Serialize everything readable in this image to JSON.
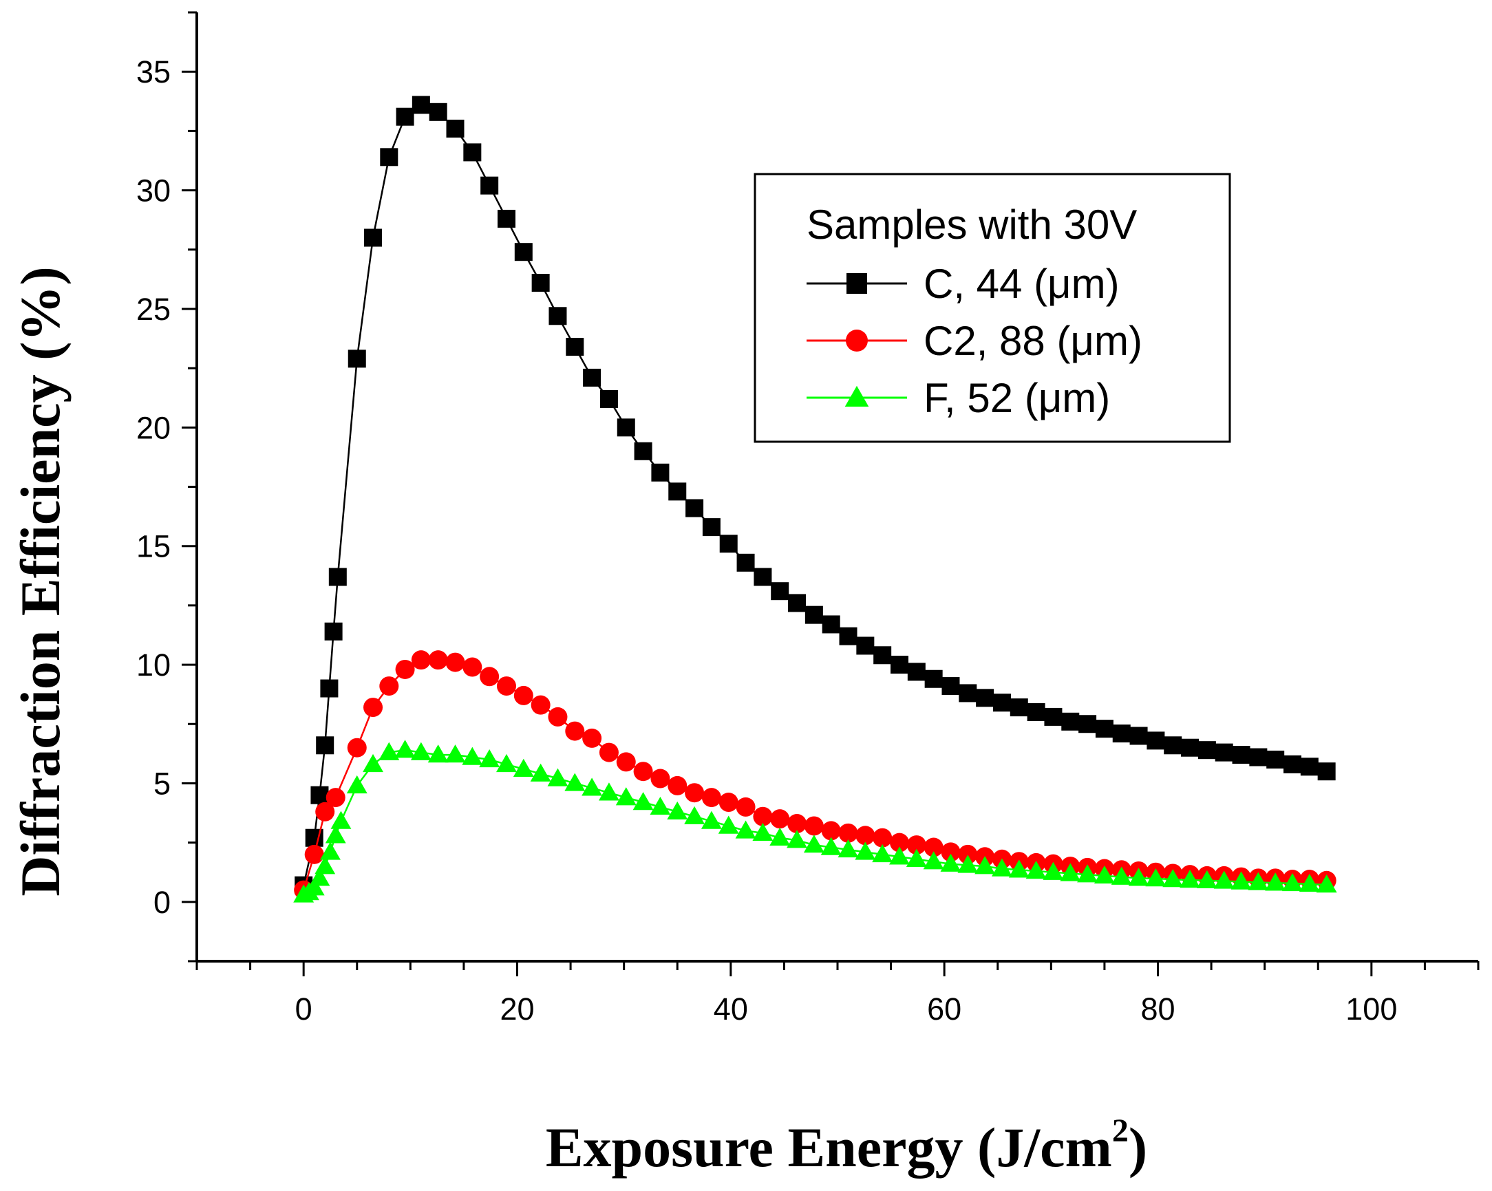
{
  "chart_data": {
    "type": "line",
    "title": "",
    "xlabel": "Exposure Energy (J/cm",
    "xlabel_sup": "2",
    "xlabel_close": ")",
    "ylabel": "Diffraction Efficiency (%)",
    "xlim": [
      -10,
      110
    ],
    "ylim": [
      -2.5,
      37.5
    ],
    "x_ticks": [
      0,
      20,
      40,
      60,
      80,
      100
    ],
    "x_tick_labels": [
      "0",
      "20",
      "40",
      "60",
      "80",
      "100"
    ],
    "y_ticks": [
      0,
      5,
      10,
      15,
      20,
      25,
      30,
      35
    ],
    "y_tick_labels": [
      "0",
      "5",
      "10",
      "15",
      "20",
      "25",
      "30",
      "35"
    ],
    "legend": {
      "title": "Samples with 30V",
      "position": "top-right"
    },
    "series": [
      {
        "name": "C, 44 (μm)",
        "color": "#000000",
        "marker": "square",
        "x": [
          0,
          1,
          1.5,
          2,
          2.4,
          2.8,
          3.2,
          5,
          6.5,
          8,
          9.5,
          11,
          12.6,
          14.2,
          15.8,
          17.4,
          19,
          20.6,
          22.2,
          23.8,
          25.4,
          27,
          28.6,
          30.2,
          31.8,
          33.4,
          35,
          36.6,
          38.2,
          39.8,
          41.4,
          43,
          44.6,
          46.2,
          47.8,
          49.4,
          51,
          52.6,
          54.2,
          55.8,
          57.4,
          59,
          60.6,
          62.2,
          63.8,
          65.4,
          67,
          68.6,
          70.2,
          71.8,
          73.4,
          75,
          76.6,
          78.2,
          79.8,
          81.4,
          83,
          84.6,
          86.2,
          87.8,
          89.4,
          91,
          92.6,
          94.2,
          95.8
        ],
        "y": [
          0.7,
          2.7,
          4.5,
          6.6,
          9.0,
          11.4,
          13.7,
          22.9,
          28.0,
          31.4,
          33.1,
          33.6,
          33.3,
          32.6,
          31.6,
          30.2,
          28.8,
          27.4,
          26.1,
          24.7,
          23.4,
          22.1,
          21.2,
          20.0,
          19.0,
          18.1,
          17.3,
          16.6,
          15.8,
          15.1,
          14.3,
          13.7,
          13.1,
          12.6,
          12.1,
          11.7,
          11.2,
          10.8,
          10.4,
          10.0,
          9.7,
          9.4,
          9.1,
          8.8,
          8.6,
          8.4,
          8.2,
          8.0,
          7.8,
          7.6,
          7.5,
          7.3,
          7.1,
          7.0,
          6.8,
          6.6,
          6.5,
          6.4,
          6.3,
          6.2,
          6.1,
          6.0,
          5.8,
          5.7,
          5.5
        ]
      },
      {
        "name": "C2, 88 (μm)",
        "color": "#ff0000",
        "marker": "circle",
        "x": [
          0,
          1,
          2,
          3,
          5,
          6.5,
          8,
          9.5,
          11,
          12.6,
          14.2,
          15.8,
          17.4,
          19,
          20.6,
          22.2,
          23.8,
          25.4,
          27,
          28.6,
          30.2,
          31.8,
          33.4,
          35,
          36.6,
          38.2,
          39.8,
          41.4,
          43,
          44.6,
          46.2,
          47.8,
          49.4,
          51,
          52.6,
          54.2,
          55.8,
          57.4,
          59,
          60.6,
          62.2,
          63.8,
          65.4,
          67,
          68.6,
          70.2,
          71.8,
          73.4,
          75,
          76.6,
          78.2,
          79.8,
          81.4,
          83,
          84.6,
          86.2,
          87.8,
          89.4,
          91,
          92.6,
          94.2,
          95.8
        ],
        "y": [
          0.5,
          2.0,
          3.8,
          4.4,
          6.5,
          8.2,
          9.1,
          9.8,
          10.2,
          10.2,
          10.1,
          9.9,
          9.5,
          9.1,
          8.7,
          8.3,
          7.8,
          7.2,
          6.9,
          6.3,
          5.9,
          5.5,
          5.2,
          4.9,
          4.6,
          4.4,
          4.2,
          4.0,
          3.6,
          3.5,
          3.3,
          3.2,
          3.0,
          2.9,
          2.8,
          2.7,
          2.5,
          2.4,
          2.3,
          2.1,
          2.0,
          1.9,
          1.8,
          1.7,
          1.65,
          1.6,
          1.5,
          1.45,
          1.4,
          1.35,
          1.3,
          1.25,
          1.2,
          1.15,
          1.1,
          1.1,
          1.05,
          1.0,
          1.0,
          0.95,
          0.95,
          0.9
        ]
      },
      {
        "name": "F, 52 (μm)",
        "color": "#00ff00",
        "marker": "triangle",
        "x": [
          0,
          0.5,
          1,
          1.5,
          2,
          2.5,
          3,
          3.5,
          5,
          6.5,
          8,
          9.5,
          11,
          12.6,
          14.2,
          15.8,
          17.4,
          19,
          20.6,
          22.2,
          23.8,
          25.4,
          27,
          28.6,
          30.2,
          31.8,
          33.4,
          35,
          36.6,
          38.2,
          39.8,
          41.4,
          43,
          44.6,
          46.2,
          47.8,
          49.4,
          51,
          52.6,
          54.2,
          55.8,
          57.4,
          59,
          60.6,
          62.2,
          63.8,
          65.4,
          67,
          68.6,
          70.2,
          71.8,
          73.4,
          75,
          76.6,
          78.2,
          79.8,
          81.4,
          83,
          84.6,
          86.2,
          87.8,
          89.4,
          91,
          92.6,
          94.2,
          95.8
        ],
        "y": [
          0.3,
          0.4,
          0.6,
          1.0,
          1.5,
          2.1,
          2.8,
          3.4,
          4.9,
          5.8,
          6.3,
          6.4,
          6.3,
          6.2,
          6.2,
          6.1,
          6.0,
          5.8,
          5.6,
          5.4,
          5.2,
          5.0,
          4.8,
          4.6,
          4.4,
          4.2,
          4.0,
          3.8,
          3.6,
          3.4,
          3.2,
          3.0,
          2.9,
          2.7,
          2.6,
          2.4,
          2.3,
          2.2,
          2.1,
          2.0,
          1.9,
          1.8,
          1.7,
          1.6,
          1.55,
          1.5,
          1.4,
          1.35,
          1.3,
          1.25,
          1.2,
          1.15,
          1.1,
          1.05,
          1.0,
          0.98,
          0.95,
          0.92,
          0.9,
          0.88,
          0.85,
          0.82,
          0.8,
          0.78,
          0.75,
          0.72
        ]
      }
    ]
  }
}
